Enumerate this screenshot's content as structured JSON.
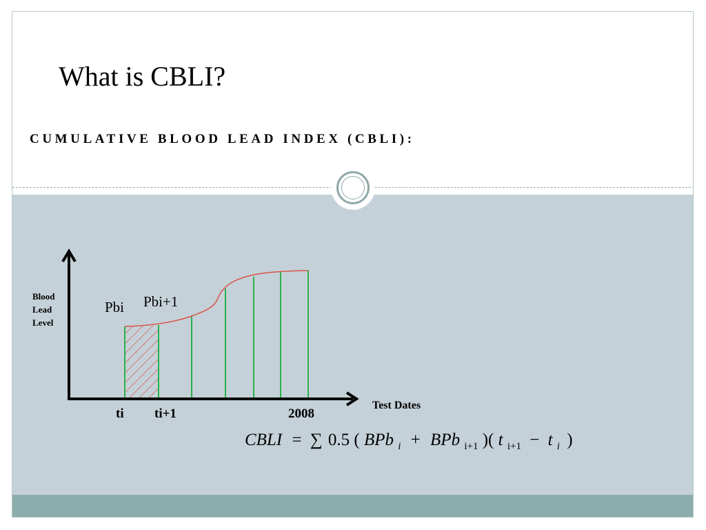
{
  "slide": {
    "title": "What is CBLI?",
    "subtitle": "CUMULATIVE BLOOD LEAD INDEX (CBLI):"
  },
  "diagram": {
    "y_axis_label": [
      "Blood",
      "Lead",
      "Level"
    ],
    "x_axis_label": "Test Dates",
    "point_labels": {
      "pbi": "Pbi",
      "pbi_next": "Pbi+1"
    },
    "tick_labels": {
      "ti": "ti",
      "ti_next": "ti+1",
      "last": "2008"
    },
    "formula": {
      "lhs": "CBLI",
      "equals": "=",
      "sum": "∑",
      "coef": "0.5",
      "open": "(",
      "bpb": "BPb",
      "sub_i": "i",
      "plus": "+",
      "sub_i1": "i+1",
      "close_open": ")(",
      "t": "t",
      "minus": "−",
      "close": ")"
    },
    "colors": {
      "axis": "#000000",
      "curve": "#d9534a",
      "stripes": "#2bb14a",
      "hatch": "#d9534a",
      "content_bg": "#c5d1d8",
      "footer": "#8cadac"
    }
  }
}
